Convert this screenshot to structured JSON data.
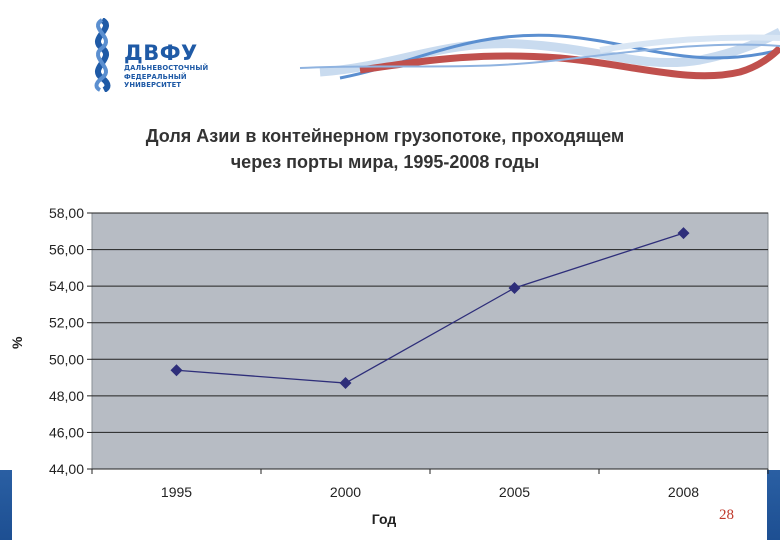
{
  "logo": {
    "title": "ДВФУ",
    "sub1": "ДАЛЬНЕВОСТОЧНЫЙ",
    "sub2": "ФЕДЕРАЛЬНЫЙ",
    "sub3": "УНИВЕРСИТЕТ"
  },
  "page_number": "28",
  "colors": {
    "plot_background": "#b7bcc4",
    "series_line": "#2e2e7a",
    "bottom_band": "#1f4f92",
    "logo_blue": "#1f5aa6"
  },
  "chart_data": {
    "type": "line",
    "title_lines": [
      "Доля Азии в контейнерном грузопотоке, проходящем",
      "через порты мира, 1995-2008 годы"
    ],
    "xlabel": "Год",
    "ylabel": "%",
    "categories": [
      "1995",
      "2000",
      "2005",
      "2008"
    ],
    "series": [
      {
        "values": [
          49.4,
          48.7,
          53.9,
          56.9
        ]
      }
    ],
    "ylim": [
      44,
      58
    ],
    "y_step": 2,
    "y_tick_labels": [
      "44,00",
      "46,00",
      "48,00",
      "50,00",
      "52,00",
      "54,00",
      "56,00",
      "58,00"
    ],
    "grid": true,
    "marker": "diamond"
  }
}
